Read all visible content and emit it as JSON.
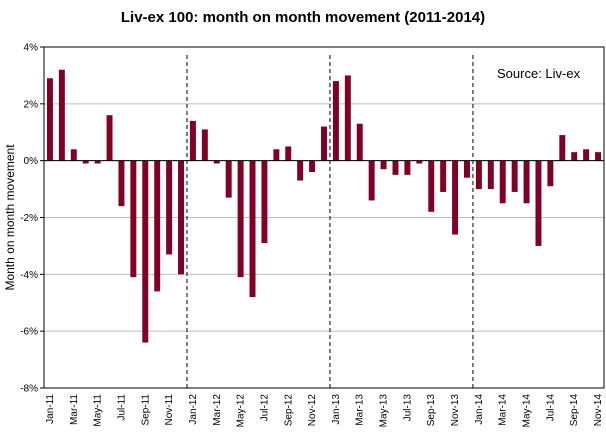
{
  "chart_data": {
    "type": "bar",
    "title": "Liv-ex 100: month on month movement (2011-2014)",
    "ylabel": "Month on month movement",
    "xlabel": "",
    "annotation": "Source: Liv-ex",
    "ylim": [
      -8,
      4
    ],
    "yticks": [
      -8,
      -6,
      -4,
      -2,
      0,
      2,
      4
    ],
    "ytick_labels": [
      "-8%",
      "-6%",
      "-4%",
      "-2%",
      "0%",
      "2%",
      "4%"
    ],
    "grid": "horizontal",
    "legend": "none",
    "bar_color": "#800026",
    "divider_after": [
      "Dec-11",
      "Dec-12",
      "Dec-13"
    ],
    "categories": [
      "Jan-11",
      "Feb-11",
      "Mar-11",
      "Apr-11",
      "May-11",
      "Jun-11",
      "Jul-11",
      "Aug-11",
      "Sep-11",
      "Oct-11",
      "Nov-11",
      "Dec-11",
      "Jan-12",
      "Feb-12",
      "Mar-12",
      "Apr-12",
      "May-12",
      "Jun-12",
      "Jul-12",
      "Aug-12",
      "Sep-12",
      "Oct-12",
      "Nov-12",
      "Dec-12",
      "Jan-13",
      "Feb-13",
      "Mar-13",
      "Apr-13",
      "May-13",
      "Jun-13",
      "Jul-13",
      "Aug-13",
      "Sep-13",
      "Oct-13",
      "Nov-13",
      "Dec-13",
      "Jan-14",
      "Feb-14",
      "Mar-14",
      "Apr-14",
      "May-14",
      "Jun-14",
      "Jul-14",
      "Aug-14",
      "Sep-14",
      "Oct-14",
      "Nov-14"
    ],
    "tick_labels": [
      "Jan-11",
      "Mar-11",
      "May-11",
      "Jul-11",
      "Sep-11",
      "Nov-11",
      "Jan-12",
      "Mar-12",
      "May-12",
      "Jul-12",
      "Sep-12",
      "Nov-12",
      "Jan-13",
      "Mar-13",
      "May-13",
      "Jul-13",
      "Sep-13",
      "Nov-13",
      "Jan-14",
      "Mar-14",
      "May-14",
      "Jul-14",
      "Sep-14",
      "Nov-14"
    ],
    "values": [
      2.9,
      3.2,
      0.4,
      -0.1,
      -0.1,
      1.6,
      -1.6,
      -4.1,
      -6.4,
      -4.6,
      -3.3,
      -4.0,
      1.4,
      1.1,
      -0.1,
      -1.3,
      -4.1,
      -4.8,
      -2.9,
      0.4,
      0.5,
      -0.7,
      -0.4,
      1.2,
      2.8,
      3.0,
      1.3,
      -1.4,
      -0.3,
      -0.5,
      -0.5,
      -0.1,
      -1.8,
      -1.1,
      -2.6,
      -0.6,
      -1.0,
      -1.0,
      -1.5,
      -1.1,
      -1.5,
      -3.0,
      -0.9,
      0.9,
      0.3,
      0.4,
      0.3
    ]
  }
}
